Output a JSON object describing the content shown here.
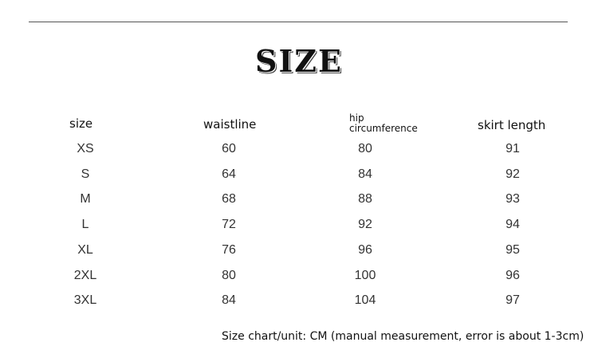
{
  "title": "SIZE",
  "table": {
    "headers": {
      "size": "size",
      "waistline": "waistline",
      "hip_line1": "hip",
      "hip_line2": "circumference",
      "skirt": "skirt length"
    },
    "rows": [
      [
        "XS",
        "60",
        "80",
        "91"
      ],
      [
        "S",
        "64",
        "84",
        "92"
      ],
      [
        "M",
        "68",
        "88",
        "93"
      ],
      [
        "L",
        "72",
        "92",
        "94"
      ],
      [
        "XL",
        "76",
        "96",
        "95"
      ],
      [
        "2XL",
        "80",
        "100",
        "96"
      ],
      [
        "3XL",
        "84",
        "104",
        "97"
      ]
    ]
  },
  "footer": "Size chart/unit: CM (manual measurement, error is about 1-3cm)"
}
